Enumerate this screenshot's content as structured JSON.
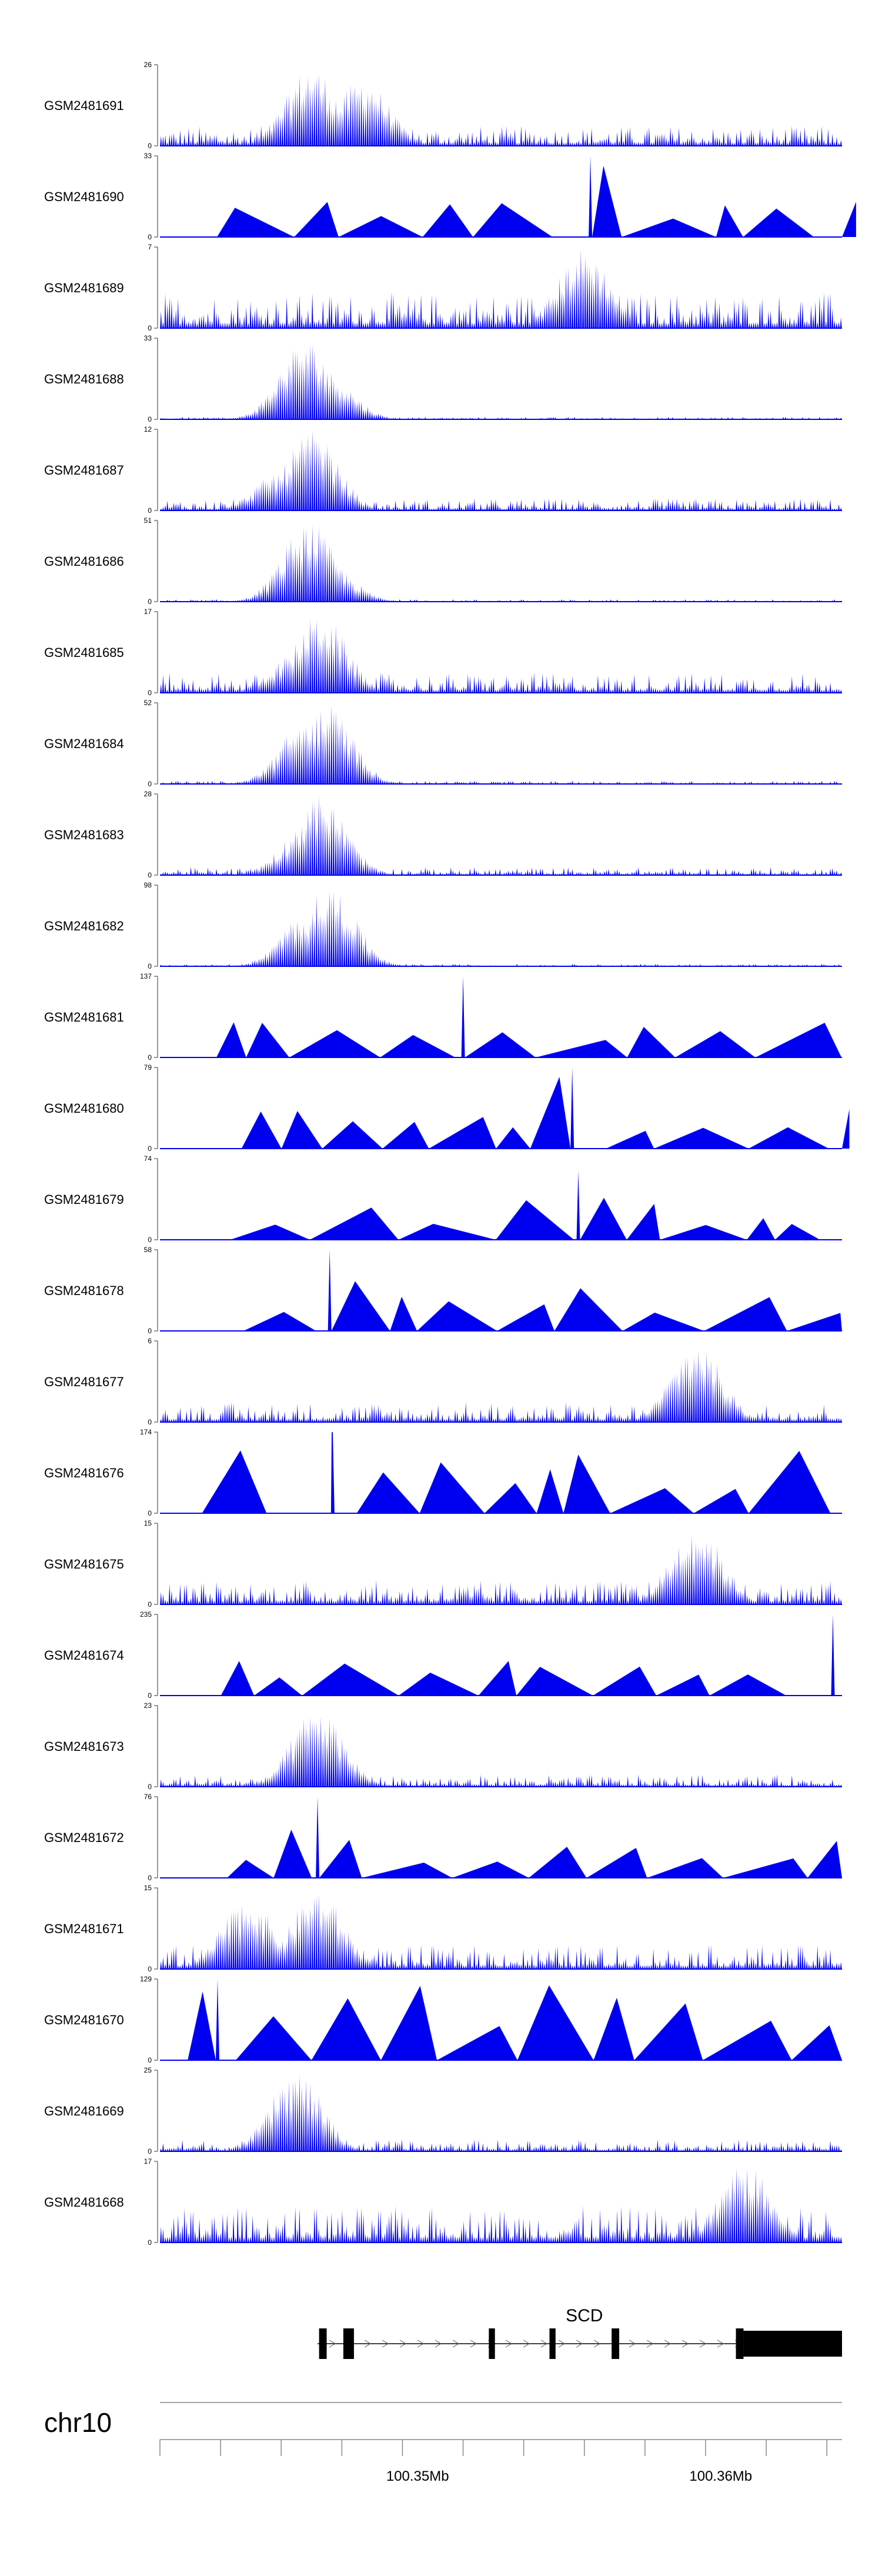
{
  "colors": {
    "signal": "#0000f0",
    "axis": "#555555",
    "gene": "#000000"
  },
  "chart_data": {
    "type": "area",
    "title": "",
    "chromosome": "chr10",
    "region_mb": [
      100.3415,
      100.364
    ],
    "gene": {
      "name": "SCD",
      "strand": "+",
      "start_mb": 100.3467,
      "end_mb": 100.364,
      "exons_mb": [
        [
          100.34675,
          100.347
        ],
        [
          100.34755,
          100.3479
        ],
        [
          100.35235,
          100.35255
        ],
        [
          100.35435,
          100.35455
        ],
        [
          100.3564,
          100.35665
        ],
        [
          100.3605,
          100.36075
        ],
        [
          100.36075,
          100.364
        ]
      ]
    },
    "axis_ticks_mb": [
      100.3415,
      100.3435,
      100.3455,
      100.3475,
      100.3495,
      100.3515,
      100.3535,
      100.3555,
      100.3575,
      100.3595,
      100.3615,
      100.3635
    ],
    "axis_labels": [
      {
        "mb": 100.35,
        "label": "100.35Mb"
      },
      {
        "mb": 100.36,
        "label": "100.36Mb"
      }
    ],
    "tracks": [
      {
        "name": "GSM2481691",
        "ymax": 26,
        "kind": "dense",
        "peaks": [
          [
            100.3465,
            1.0
          ],
          [
            100.3482,
            0.85
          ]
        ],
        "base": 0.25
      },
      {
        "name": "GSM2481690",
        "ymax": 33,
        "kind": "sparse",
        "peaks": [
          [
            100.3557,
            1.0
          ]
        ],
        "base": 0.45
      },
      {
        "name": "GSM2481689",
        "ymax": 7,
        "kind": "dense",
        "peaks": [
          [
            100.3555,
            1.0
          ]
        ],
        "base": 0.45
      },
      {
        "name": "GSM2481688",
        "ymax": 33,
        "kind": "dense",
        "peaks": [
          [
            100.3463,
            1.0
          ],
          [
            100.347,
            0.6
          ]
        ],
        "base": 0.03
      },
      {
        "name": "GSM2481687",
        "ymax": 12,
        "kind": "dense",
        "peaks": [
          [
            100.3465,
            1.0
          ],
          [
            100.3455,
            0.5
          ]
        ],
        "base": 0.15
      },
      {
        "name": "GSM2481686",
        "ymax": 51,
        "kind": "dense",
        "peaks": [
          [
            100.3464,
            1.0
          ],
          [
            100.347,
            0.5
          ]
        ],
        "base": 0.03
      },
      {
        "name": "GSM2481685",
        "ymax": 17,
        "kind": "dense",
        "peaks": [
          [
            100.3468,
            1.0
          ],
          [
            100.346,
            0.5
          ]
        ],
        "base": 0.25
      },
      {
        "name": "GSM2481684",
        "ymax": 52,
        "kind": "dense",
        "peaks": [
          [
            100.347,
            1.0
          ],
          [
            100.3463,
            0.8
          ]
        ],
        "base": 0.04
      },
      {
        "name": "GSM2481683",
        "ymax": 28,
        "kind": "dense",
        "peaks": [
          [
            100.3468,
            1.0
          ],
          [
            100.3463,
            0.6
          ]
        ],
        "base": 0.1
      },
      {
        "name": "GSM2481682",
        "ymax": 98,
        "kind": "dense",
        "peaks": [
          [
            100.3471,
            1.0
          ],
          [
            100.3464,
            0.7
          ]
        ],
        "base": 0.03
      },
      {
        "name": "GSM2481681",
        "ymax": 137,
        "kind": "sparse",
        "peaks": [
          [
            100.3515,
            1.0
          ]
        ],
        "base": 0.45
      },
      {
        "name": "GSM2481680",
        "ymax": 79,
        "kind": "sparse",
        "peaks": [
          [
            100.3551,
            1.0
          ]
        ],
        "base": 0.5
      },
      {
        "name": "GSM2481679",
        "ymax": 74,
        "kind": "sparse",
        "peaks": [
          [
            100.3553,
            0.85
          ]
        ],
        "base": 0.5
      },
      {
        "name": "GSM2481678",
        "ymax": 58,
        "kind": "sparse",
        "peaks": [
          [
            100.3471,
            1.0
          ]
        ],
        "base": 0.55
      },
      {
        "name": "GSM2481677",
        "ymax": 6,
        "kind": "dense",
        "peaks": [
          [
            100.3592,
            1.0
          ]
        ],
        "base": 0.25
      },
      {
        "name": "GSM2481676",
        "ymax": 174,
        "kind": "sparse",
        "peaks": [
          [
            100.3472,
            1.0
          ]
        ],
        "base": 0.8
      },
      {
        "name": "GSM2481675",
        "ymax": 15,
        "kind": "dense",
        "peaks": [
          [
            100.3592,
            1.0
          ]
        ],
        "base": 0.3
      },
      {
        "name": "GSM2481674",
        "ymax": 235,
        "kind": "sparse",
        "peaks": [
          [
            100.3637,
            1.0
          ]
        ],
        "base": 0.45
      },
      {
        "name": "GSM2481673",
        "ymax": 23,
        "kind": "dense",
        "peaks": [
          [
            100.3467,
            1.0
          ]
        ],
        "base": 0.15
      },
      {
        "name": "GSM2481672",
        "ymax": 76,
        "kind": "sparse",
        "peaks": [
          [
            100.3467,
            1.0
          ]
        ],
        "base": 0.5
      },
      {
        "name": "GSM2481671",
        "ymax": 15,
        "kind": "dense",
        "peaks": [
          [
            100.3467,
            1.0
          ],
          [
            100.3444,
            0.9
          ]
        ],
        "base": 0.3
      },
      {
        "name": "GSM2481670",
        "ymax": 129,
        "kind": "sparse",
        "peaks": [
          [
            100.3434,
            1.0
          ]
        ],
        "base": 1.0
      },
      {
        "name": "GSM2481669",
        "ymax": 25,
        "kind": "dense",
        "peaks": [
          [
            100.346,
            1.0
          ]
        ],
        "base": 0.15
      },
      {
        "name": "GSM2481668",
        "ymax": 17,
        "kind": "dense",
        "peaks": [
          [
            100.3608,
            1.0
          ]
        ],
        "base": 0.45
      }
    ]
  }
}
